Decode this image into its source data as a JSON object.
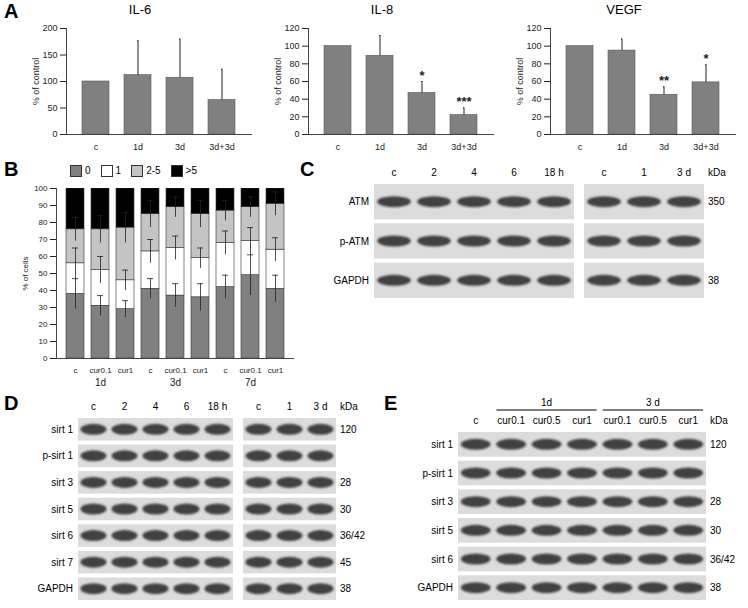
{
  "panels": [
    "A",
    "B",
    "C",
    "D",
    "E"
  ],
  "chart_data": [
    {
      "type": "bar",
      "title": "IL-6",
      "y_label": "% of control",
      "categories": [
        "c",
        "1d",
        "3d",
        "3d+3d"
      ],
      "values": [
        100,
        112,
        107,
        65
      ],
      "errors": [
        null,
        65,
        73,
        58
      ],
      "color": "#808080",
      "ylim": [
        0,
        200
      ],
      "yticks": [
        0,
        50,
        100,
        150,
        200
      ]
    },
    {
      "type": "bar",
      "title": "IL-8",
      "y_label": "% of control",
      "categories": [
        "c",
        "1d",
        "3d",
        "3d+3d"
      ],
      "values": [
        100,
        89,
        47,
        22
      ],
      "errors": [
        null,
        23,
        13,
        8
      ],
      "annotations": [
        null,
        null,
        "*",
        "***"
      ],
      "color": "#808080",
      "ylim": [
        0,
        120
      ],
      "yticks": [
        0,
        20,
        40,
        60,
        80,
        100,
        120
      ]
    },
    {
      "type": "bar",
      "title": "VEGF",
      "y_label": "% of control",
      "categories": [
        "c",
        "1d",
        "3d",
        "3d+3d"
      ],
      "values": [
        100,
        95,
        45,
        59
      ],
      "errors": [
        null,
        13,
        9,
        20
      ],
      "annotations": [
        null,
        null,
        "**",
        "*"
      ],
      "color": "#808080",
      "ylim": [
        0,
        120
      ],
      "yticks": [
        0,
        20,
        40,
        60,
        80,
        100,
        120
      ]
    },
    {
      "type": "bar",
      "stacked": true,
      "legend": "top",
      "y_label": "% of cells",
      "categories": [
        "c",
        "cur0.1",
        "cur1",
        "c",
        "cur0.1",
        "cur1",
        "c",
        "cur0.1",
        "cur1"
      ],
      "groups": [
        "1d",
        "3d",
        "7d"
      ],
      "ylim": [
        0,
        100
      ],
      "yticks": [
        0,
        10,
        20,
        30,
        40,
        50,
        60,
        70,
        80,
        90,
        100
      ],
      "series": [
        {
          "name": "0",
          "color": "#808080",
          "values": [
            38,
            31,
            29,
            41,
            37,
            36,
            42,
            49,
            41
          ],
          "errors": [
            9,
            6,
            5,
            6,
            7,
            8,
            7,
            12,
            8
          ]
        },
        {
          "name": "1",
          "color": "#ffffff",
          "values": [
            18,
            21,
            17,
            22,
            28,
            23,
            26,
            20,
            23
          ],
          "errors": [
            9,
            8,
            6,
            7,
            7,
            6,
            7,
            8,
            7
          ]
        },
        {
          "name": "2-5",
          "color": "#c4c4c4",
          "values": [
            20,
            24,
            31,
            22,
            24,
            26,
            19,
            20,
            27
          ],
          "errors": [
            7,
            8,
            9,
            8,
            6,
            8,
            6,
            6,
            7
          ]
        },
        {
          "name": ">5",
          "color": "#000000",
          "values": [
            24,
            24,
            23,
            15,
            11,
            15,
            13,
            11,
            9
          ]
        }
      ]
    }
  ],
  "blots": [
    {
      "unit": "kDa",
      "blocks": [
        {
          "lanes": [
            "c",
            "2",
            "4",
            "6",
            "18 h"
          ]
        },
        {
          "lanes": [
            "c",
            "1",
            "3 d"
          ]
        }
      ],
      "rows": [
        {
          "name": "ATM",
          "kDa": "350"
        },
        {
          "name": "p-ATM",
          "kDa": null
        },
        {
          "name": "GAPDH",
          "kDa": "38"
        }
      ]
    },
    {
      "unit": "kDa",
      "blocks": [
        {
          "lanes": [
            "c",
            "2",
            "4",
            "6",
            "18 h"
          ]
        },
        {
          "lanes": [
            "c",
            "1",
            "3 d"
          ]
        }
      ],
      "rows": [
        {
          "name": "sirt 1",
          "kDa": "120"
        },
        {
          "name": "p-sirt 1",
          "kDa": null
        },
        {
          "name": "sirt 3",
          "kDa": "28"
        },
        {
          "name": "sirt 5",
          "kDa": "30"
        },
        {
          "name": "sirt 6",
          "kDa": "36/42"
        },
        {
          "name": "sirt 7",
          "kDa": "45"
        },
        {
          "name": "GAPDH",
          "kDa": "38"
        }
      ]
    },
    {
      "unit": "kDa",
      "blocks": [
        {
          "lanes": [
            "c",
            "cur0.1",
            "cur0.5",
            "cur1",
            "cur0.1",
            "cur0.5",
            "cur1"
          ],
          "lane_groups": [
            null,
            "1d",
            "1d",
            "1d",
            "3 d",
            "3 d",
            "3 d"
          ]
        }
      ],
      "rows": [
        {
          "name": "sirt 1",
          "kDa": "120"
        },
        {
          "name": "p-sirt 1",
          "kDa": null
        },
        {
          "name": "sirt 3",
          "kDa": "28"
        },
        {
          "name": "sirt 5",
          "kDa": "30"
        },
        {
          "name": "sirt 6",
          "kDa": "36/42"
        },
        {
          "name": "GAPDH",
          "kDa": "38"
        }
      ]
    }
  ]
}
